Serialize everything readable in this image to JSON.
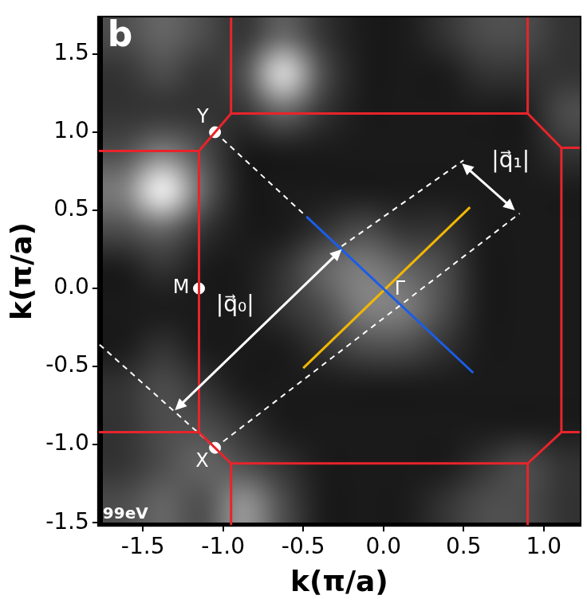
{
  "chart_data": {
    "type": "heatmap",
    "panel_label": "b",
    "annotations": [
      "99eV"
    ],
    "x_label": "k(π/a)",
    "y_label": "k(π/a)",
    "xlim": [
      -1.78,
      1.23
    ],
    "ylim": [
      -1.52,
      1.74
    ],
    "xticks": [
      -1.5,
      {
        "value": -1.0,
        "label": "-1.0"
      },
      -0.5,
      {
        "value": 0.0,
        "label": "0.0"
      },
      0.5,
      {
        "value": 1.0,
        "label": "1.0"
      }
    ],
    "yticks": [
      -1.5,
      {
        "value": -1.0,
        "label": "-1.0"
      },
      -0.5,
      {
        "value": 0.0,
        "label": "0.0"
      },
      0.5,
      {
        "value": 1.0,
        "label": "1.0"
      },
      1.5
    ],
    "grid": false,
    "intensity": {
      "x": [
        -1.625,
        -1.375,
        -1.125,
        -0.875,
        -0.625,
        -0.375,
        -0.125,
        0.125,
        0.375,
        0.625,
        0.875,
        1.125
      ],
      "y": [
        1.625,
        1.375,
        1.125,
        0.875,
        0.625,
        0.375,
        0.125,
        -0.125,
        -0.375,
        -0.625,
        -0.875,
        -1.125,
        -1.375
      ],
      "zlim": [
        0,
        1
      ],
      "cells": [
        [
          0.3,
          0.4,
          0.3,
          0.2,
          0.4,
          0.2,
          0.1,
          0.1,
          0.2,
          0.3,
          0.3,
          0.2
        ],
        [
          0.2,
          0.3,
          0.2,
          0.3,
          0.9,
          0.3,
          0.1,
          0.1,
          0.1,
          0.2,
          0.2,
          0.2
        ],
        [
          0.2,
          0.2,
          0.2,
          0.2,
          0.4,
          0.2,
          0.1,
          0.1,
          0.1,
          0.1,
          0.1,
          0.3
        ],
        [
          0.3,
          0.5,
          0.3,
          0.1,
          0.1,
          0.1,
          0.1,
          0.1,
          0.1,
          0.1,
          0.1,
          0.2
        ],
        [
          0.5,
          1.0,
          0.4,
          0.1,
          0.1,
          0.1,
          0.1,
          0.1,
          0.1,
          0.1,
          0.1,
          0.1
        ],
        [
          0.3,
          0.4,
          0.2,
          0.1,
          0.1,
          0.2,
          0.3,
          0.2,
          0.2,
          0.1,
          0.1,
          0.1
        ],
        [
          0.1,
          0.2,
          0.1,
          0.1,
          0.2,
          0.4,
          0.5,
          0.4,
          0.3,
          0.1,
          0.1,
          0.1
        ],
        [
          0.1,
          0.1,
          0.1,
          0.1,
          0.2,
          0.3,
          0.5,
          0.5,
          0.3,
          0.1,
          0.1,
          0.1
        ],
        [
          0.1,
          0.2,
          0.1,
          0.1,
          0.1,
          0.2,
          0.3,
          0.3,
          0.2,
          0.1,
          0.1,
          0.1
        ],
        [
          0.2,
          0.3,
          0.2,
          0.1,
          0.1,
          0.1,
          0.1,
          0.1,
          0.1,
          0.1,
          0.1,
          0.1
        ],
        [
          0.2,
          0.3,
          0.3,
          0.2,
          0.1,
          0.1,
          0.1,
          0.1,
          0.1,
          0.1,
          0.1,
          0.1
        ],
        [
          0.2,
          0.3,
          0.4,
          0.3,
          0.2,
          0.1,
          0.1,
          0.1,
          0.1,
          0.2,
          0.3,
          0.2
        ],
        [
          0.3,
          0.4,
          0.3,
          0.6,
          0.3,
          0.1,
          0.1,
          0.1,
          0.2,
          0.3,
          0.3,
          0.2
        ]
      ]
    },
    "series": [
      {
        "type": "line",
        "color": "#e8242b",
        "line_style": "solid",
        "x": [
          -1.15,
          -0.95,
          0.9,
          1.11,
          1.11,
          0.9,
          -0.95,
          -1.15,
          -1.15
        ],
        "y": [
          0.88,
          1.12,
          1.12,
          0.9,
          -0.92,
          -1.12,
          -1.12,
          -0.92,
          0.88
        ]
      },
      {
        "type": "line",
        "color": "#e8242b",
        "line_style": "solid",
        "x": [
          -1.15,
          -1.78
        ],
        "y": [
          0.88,
          0.88
        ]
      },
      {
        "type": "line",
        "color": "#e8242b",
        "line_style": "solid",
        "x": [
          -0.95,
          -0.95
        ],
        "y": [
          1.12,
          1.74
        ]
      },
      {
        "type": "line",
        "color": "#e8242b",
        "line_style": "solid",
        "x": [
          0.9,
          0.9
        ],
        "y": [
          1.12,
          1.74
        ]
      },
      {
        "type": "line",
        "color": "#e8242b",
        "line_style": "solid",
        "x": [
          1.11,
          1.23
        ],
        "y": [
          0.9,
          0.9
        ]
      },
      {
        "type": "line",
        "color": "#e8242b",
        "line_style": "solid",
        "x": [
          1.11,
          1.23
        ],
        "y": [
          -0.92,
          -0.92
        ]
      },
      {
        "type": "line",
        "color": "#e8242b",
        "line_style": "solid",
        "x": [
          0.9,
          0.9
        ],
        "y": [
          -1.12,
          -1.52
        ]
      },
      {
        "type": "line",
        "color": "#e8242b",
        "line_style": "solid",
        "x": [
          -0.95,
          -0.95
        ],
        "y": [
          -1.12,
          -1.52
        ]
      },
      {
        "type": "line",
        "color": "#e8242b",
        "line_style": "solid",
        "x": [
          -1.15,
          -1.78
        ],
        "y": [
          -0.92,
          -0.92
        ]
      },
      {
        "type": "line",
        "color": "#1a5de8",
        "line_style": "solid",
        "x": [
          -0.48,
          0.56
        ],
        "y": [
          0.46,
          -0.54
        ]
      },
      {
        "type": "line",
        "color": "#f2b705",
        "line_style": "solid",
        "x": [
          -0.5,
          0.54
        ],
        "y": [
          -0.51,
          0.52
        ]
      },
      {
        "type": "line",
        "color": "#ffffff",
        "line_style": "dashed",
        "x": [
          -1.05,
          -0.48
        ],
        "y": [
          1.0,
          0.46
        ]
      },
      {
        "type": "line",
        "color": "#ffffff",
        "line_style": "dashed",
        "x": [
          -0.26,
          0.5
        ],
        "y": [
          0.27,
          0.82
        ]
      },
      {
        "type": "line",
        "color": "#ffffff",
        "line_style": "dashed",
        "x": [
          -1.05,
          0.85
        ],
        "y": [
          -1.02,
          0.48
        ]
      },
      {
        "type": "line",
        "color": "#ffffff",
        "line_style": "dashed",
        "x": [
          -1.77,
          -1.05
        ],
        "y": [
          -0.36,
          -1.02
        ]
      }
    ],
    "points": [
      {
        "name": "Y",
        "x": -1.05,
        "y": 1.0,
        "marker": "circle",
        "color": "#ffffff"
      },
      {
        "name": "M",
        "x": -1.15,
        "y": 0.0,
        "marker": "circle",
        "color": "#ffffff"
      },
      {
        "name": "X",
        "x": -1.05,
        "y": -1.02,
        "marker": "circle",
        "color": "#ffffff"
      },
      {
        "name": "Γ",
        "x": 0.0,
        "y": 0.0,
        "marker": "none",
        "color": "#ffffff"
      }
    ],
    "arrows": [
      {
        "label": "|q⃗₀|",
        "x": [
          -0.26,
          -1.3
        ],
        "y": [
          0.25,
          -0.78
        ],
        "color": "#ffffff"
      },
      {
        "label": "|q⃗₁|",
        "x": [
          0.49,
          0.82
        ],
        "y": [
          0.8,
          0.5
        ],
        "color": "#ffffff"
      }
    ]
  }
}
